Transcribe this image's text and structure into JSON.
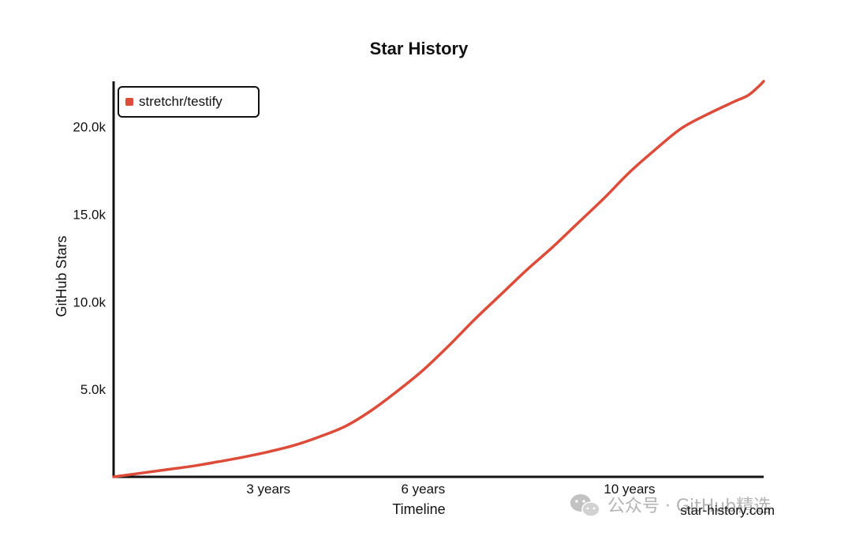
{
  "chart_data": {
    "type": "line",
    "title": "Star History",
    "xlabel": "Timeline",
    "ylabel": "GitHub Stars",
    "x_unit": "years",
    "xlim": [
      0,
      12.6
    ],
    "ylim": [
      0,
      22600
    ],
    "x_ticks": [
      {
        "value": 3,
        "label": "3 years"
      },
      {
        "value": 6,
        "label": "6 years"
      },
      {
        "value": 10,
        "label": "10 years"
      }
    ],
    "y_ticks": [
      {
        "value": 5000,
        "label": "5.0k"
      },
      {
        "value": 10000,
        "label": "10.0k"
      },
      {
        "value": 15000,
        "label": "15.0k"
      },
      {
        "value": 20000,
        "label": "20.0k"
      }
    ],
    "grid": false,
    "legend_position": "top-left",
    "series": [
      {
        "name": "stretchr/testify",
        "color": "#dd4b39",
        "x": [
          0,
          0.5,
          1,
          1.5,
          2,
          2.5,
          3,
          3.5,
          4,
          4.5,
          5,
          5.5,
          6,
          6.5,
          7,
          7.5,
          8,
          8.5,
          9,
          9.5,
          10,
          10.5,
          11,
          11.5,
          12,
          12.3,
          12.5,
          12.6
        ],
        "values": [
          0,
          200,
          400,
          600,
          850,
          1120,
          1430,
          1800,
          2300,
          2900,
          3800,
          4900,
          6100,
          7500,
          9000,
          10400,
          11800,
          13100,
          14500,
          15900,
          17400,
          18700,
          19900,
          20700,
          21400,
          21800,
          22300,
          22600
        ]
      }
    ]
  },
  "credit": "star-history.com",
  "watermark": {
    "text": "公众号 · GitHub精选",
    "icon": "wechat-icon"
  }
}
